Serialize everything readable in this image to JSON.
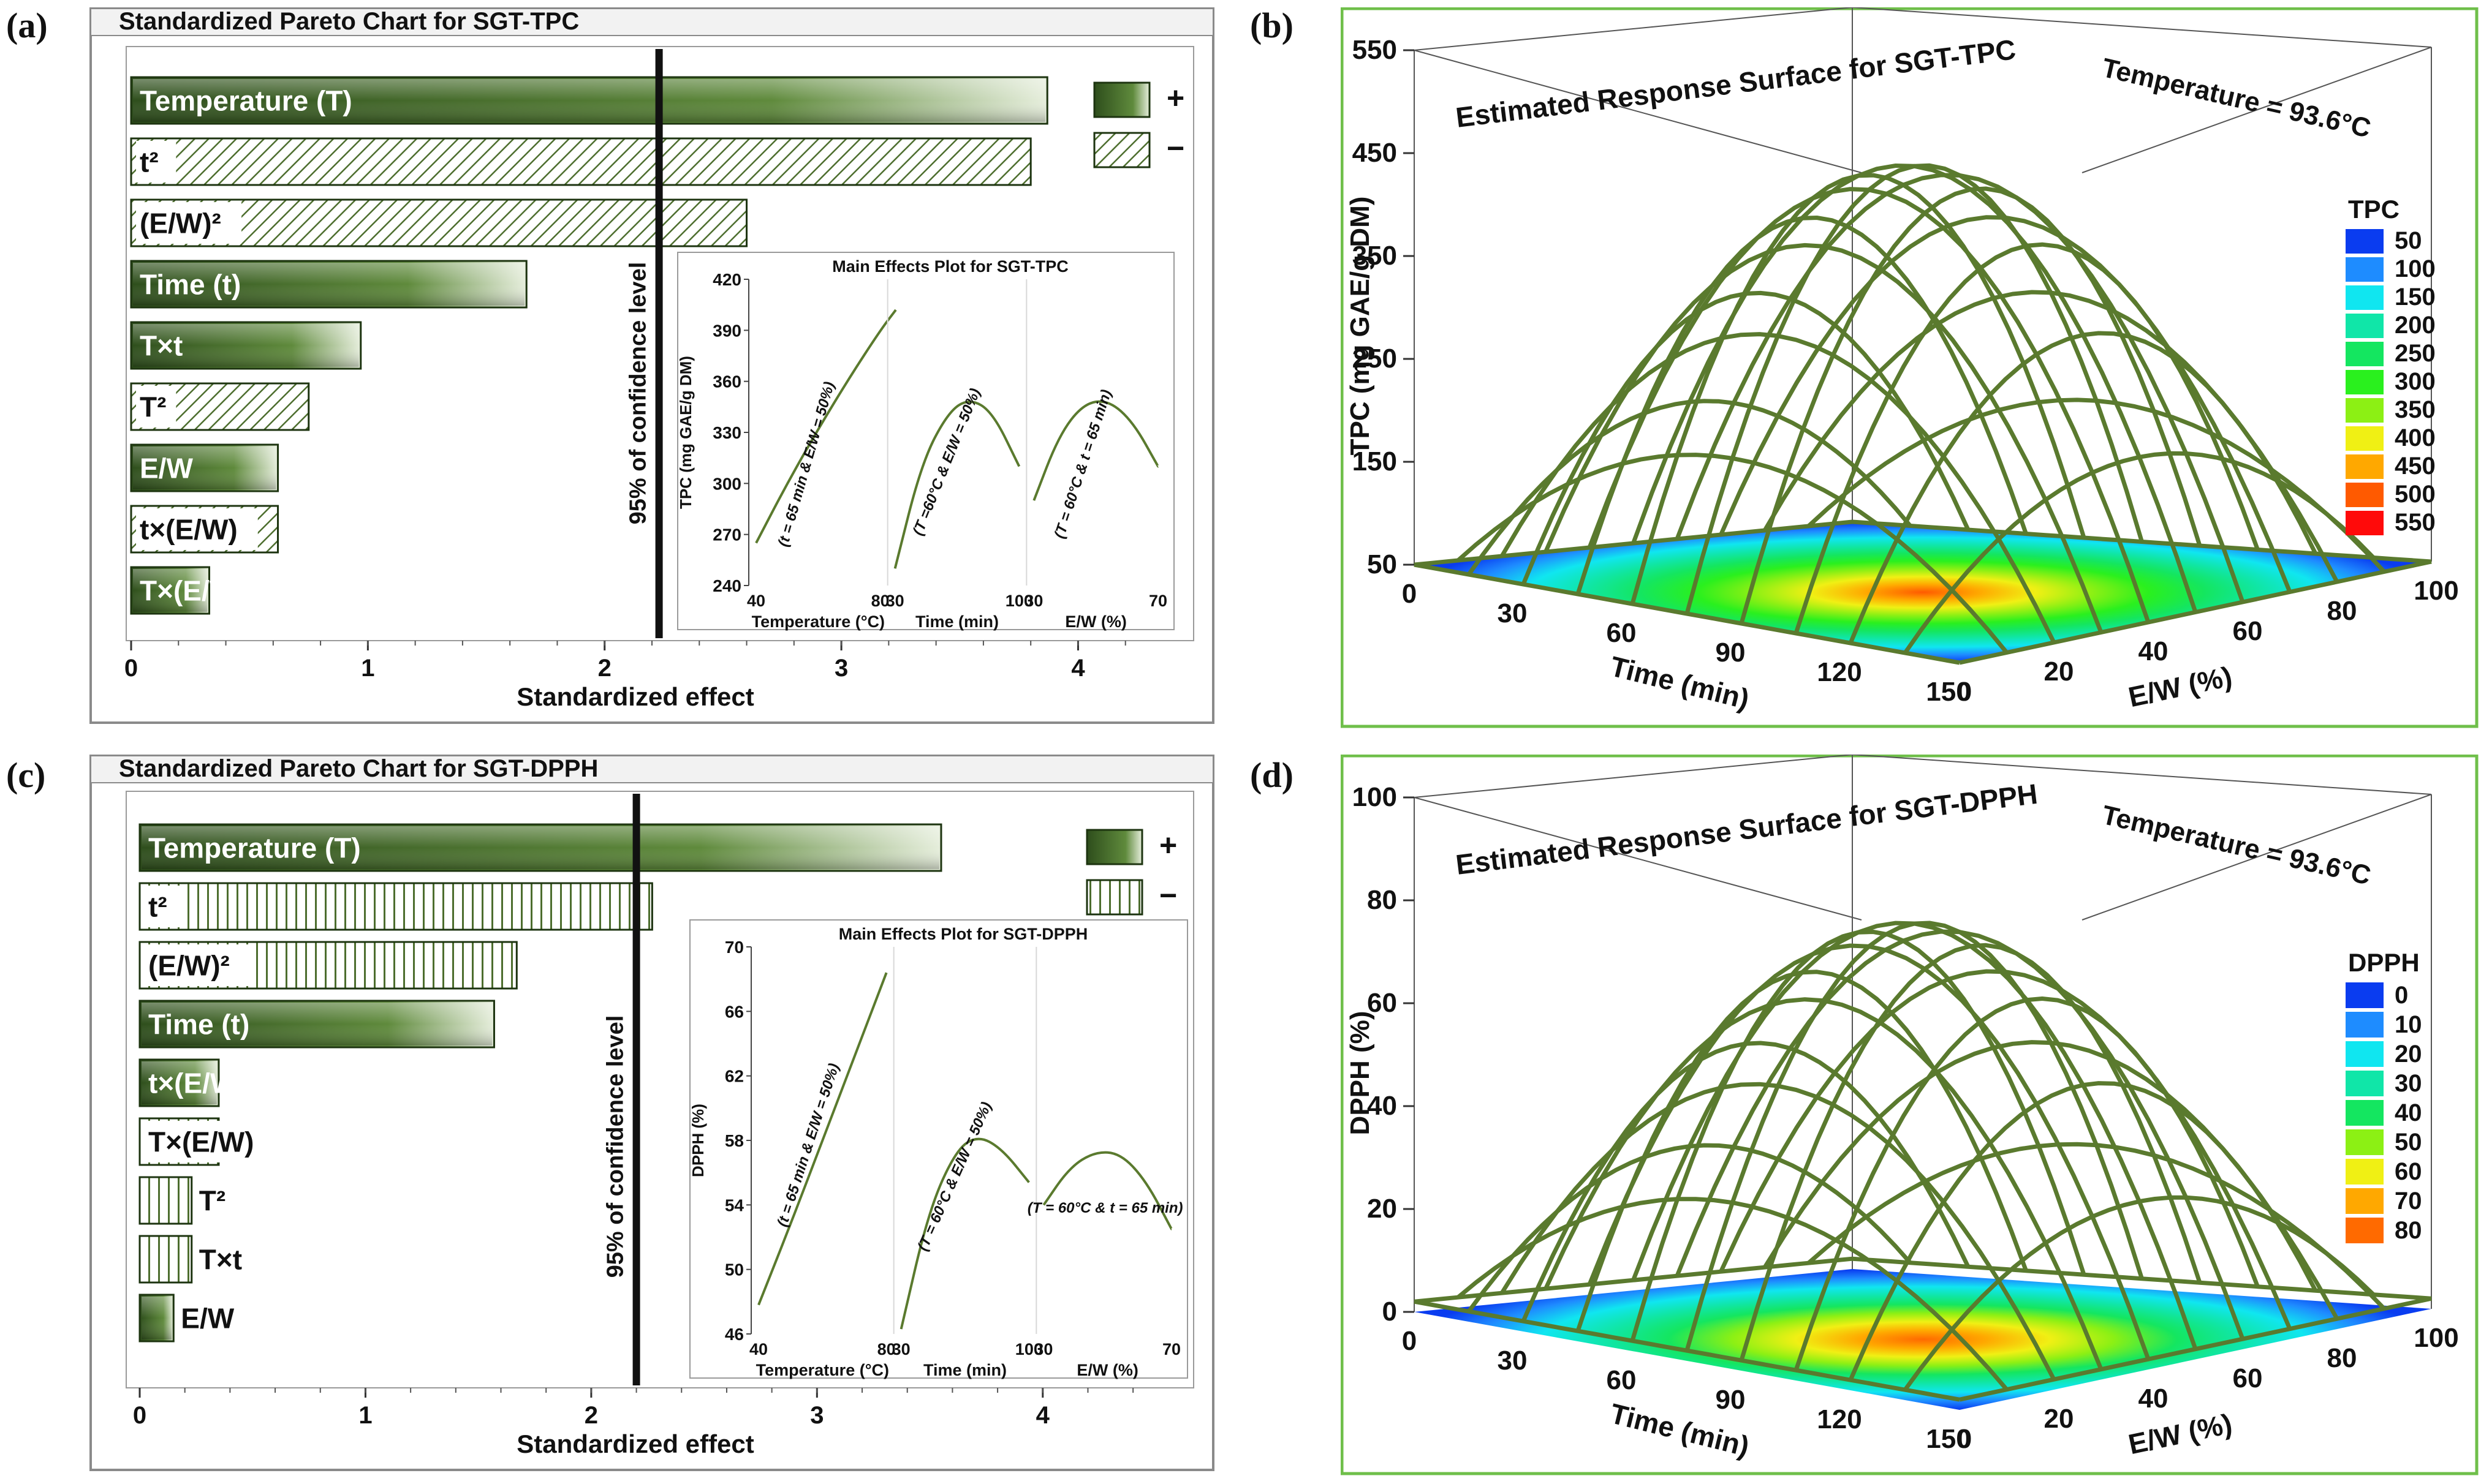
{
  "panel_labels": {
    "a": "(a)",
    "b": "(b)",
    "c": "(c)",
    "d": "(d)"
  },
  "colors": {
    "bar_dark": "#2e4e1c",
    "bar_mid": "#5f8a3c",
    "bar_light": "#e6eedc",
    "hatch": "#4d6e2e",
    "mesh": "#5a7a2e",
    "frame_green": "#6fbf4a"
  },
  "legend_signs": {
    "plus": "+",
    "minus": "−"
  },
  "chart_data": [
    {
      "id": "a",
      "type": "bar",
      "orientation": "horizontal",
      "title": "Standardized Pareto Chart for SGT-TPC",
      "xlabel": "Standardized effect",
      "xlim": [
        0,
        4.4
      ],
      "xticks": [
        "0",
        "1",
        "2",
        "3",
        "4"
      ],
      "threshold": 2.23,
      "threshold_label": "95% of confidence level",
      "legend": [
        "+",
        "−"
      ],
      "bars": [
        {
          "label": "Temperature (T)",
          "value": 3.87,
          "sign": "+"
        },
        {
          "label": "t²",
          "value": 3.8,
          "sign": "-"
        },
        {
          "label": "(E/W)²",
          "value": 2.6,
          "sign": "-"
        },
        {
          "label": "Time (t)",
          "value": 1.67,
          "sign": "+"
        },
        {
          "label": "T×t",
          "value": 0.97,
          "sign": "+"
        },
        {
          "label": "T²",
          "value": 0.75,
          "sign": "-"
        },
        {
          "label": "E/W",
          "value": 0.62,
          "sign": "+"
        },
        {
          "label": "t×(E/W)",
          "value": 0.62,
          "sign": "-"
        },
        {
          "label": "T×(E/W)",
          "value": 0.33,
          "sign": "+"
        }
      ],
      "inset": {
        "title": "Main Effects Plot for SGT-TPC",
        "ylabel": "TPC (mg GAE/g DM)",
        "ylim": [
          240,
          420
        ],
        "yticks": [
          "240",
          "270",
          "300",
          "330",
          "360",
          "390",
          "420"
        ],
        "panels": [
          {
            "xlabel": "Temperature (°C)",
            "x_ticks": [
              "40",
              "80"
            ],
            "x": [
              40,
              50,
              60,
              70,
              80,
              85
            ],
            "y": [
              265,
              300,
              332,
              362,
              390,
              402
            ],
            "note": "(t = 65 min & E/W = 50%)"
          },
          {
            "xlabel": "Time (min)",
            "x_ticks": [
              "30",
              "100"
            ],
            "x": [
              30,
              45,
              60,
              72,
              85,
              100
            ],
            "y": [
              250,
              312,
              342,
              350,
              342,
              310
            ],
            "note": "(T =60°C & E/W = 50%)"
          },
          {
            "xlabel": "E/W (%)",
            "x_ticks": [
              "30",
              "70"
            ],
            "x": [
              30,
              38,
              46,
              54,
              62,
              70
            ],
            "y": [
              290,
              328,
              347,
              349,
              336,
              310
            ],
            "note": "(T = 60°C & t = 65 min)"
          }
        ]
      }
    },
    {
      "id": "c",
      "type": "bar",
      "orientation": "horizontal",
      "title": "Standardized Pareto Chart for SGT-DPPH",
      "xlabel": "Standardized effect",
      "xlim": [
        0,
        4.5
      ],
      "xticks": [
        "0",
        "1",
        "2",
        "3",
        "4"
      ],
      "threshold": 2.2,
      "threshold_label": "95% of confidence level",
      "legend": [
        "+",
        "−"
      ],
      "bars": [
        {
          "label": "Temperature (T)",
          "value": 3.55,
          "sign": "+"
        },
        {
          "label": "t²",
          "value": 2.27,
          "sign": "-"
        },
        {
          "label": "(E/W)²",
          "value": 1.67,
          "sign": "-"
        },
        {
          "label": "Time (t)",
          "value": 1.57,
          "sign": "+"
        },
        {
          "label": "t×(E/W)",
          "value": 0.35,
          "sign": "+"
        },
        {
          "label": "T×(E/W)",
          "value": 0.35,
          "sign": "-"
        },
        {
          "label": "T²",
          "value": 0.23,
          "sign": "-"
        },
        {
          "label": "T×t",
          "value": 0.23,
          "sign": "-"
        },
        {
          "label": "E/W",
          "value": 0.15,
          "sign": "+"
        }
      ],
      "inset": {
        "title": "Main Effects Plot for SGT-DPPH",
        "ylabel": "DPPH (%)",
        "ylim": [
          46,
          70
        ],
        "yticks": [
          "46",
          "50",
          "54",
          "58",
          "62",
          "66",
          "70"
        ],
        "panels": [
          {
            "xlabel": "Temperature (°C)",
            "x_ticks": [
              "40",
              "80"
            ],
            "x": [
              40,
              50,
              60,
              70,
              80
            ],
            "y": [
              47.8,
              52.8,
              58.0,
              63.2,
              68.4
            ],
            "note": "(t = 65 min & E/W = 50%)"
          },
          {
            "xlabel": "Time (min)",
            "x_ticks": [
              "30",
              "100"
            ],
            "x": [
              30,
              45,
              60,
              72,
              85,
              100
            ],
            "y": [
              46.3,
              53.6,
              57.4,
              58.3,
              57.5,
              55.4
            ],
            "note": "(T = 60°C & E/W = 50%)"
          },
          {
            "xlabel": "E/W (%)",
            "x_ticks": [
              "30",
              "70"
            ],
            "x": [
              30,
              38,
              46,
              54,
              62,
              70
            ],
            "y": [
              54.0,
              56.3,
              57.3,
              57.2,
              55.5,
              52.5
            ],
            "note": "(T = 60°C & t = 65 min)"
          }
        ]
      }
    },
    {
      "id": "b",
      "type": "surface",
      "title": "Estimated Response Surface for SGT-TPC",
      "fixed_factor": "Temperature = 93.6°C",
      "zlabel": "TPC (mg GAE/g DM)",
      "xlabel": "Time (min)",
      "ylabel": "E/W (%)",
      "xticks": [
        "0",
        "30",
        "60",
        "90",
        "120",
        "150"
      ],
      "yticks": [
        "0",
        "20",
        "40",
        "60",
        "80",
        "100"
      ],
      "zticks": [
        "50",
        "150",
        "250",
        "350",
        "450",
        "550"
      ],
      "zlim": [
        50,
        550
      ],
      "z_peak": 450,
      "z_corner": 50,
      "legend_title": "TPC",
      "legend_levels": [
        "50",
        "100",
        "150",
        "200",
        "250",
        "300",
        "350",
        "400",
        "450",
        "500",
        "550"
      ],
      "legend_colors": [
        "#0a3cf0",
        "#1e8cff",
        "#10e6f0",
        "#10e6a8",
        "#14e660",
        "#2af01e",
        "#8cf014",
        "#f0f014",
        "#ffa800",
        "#ff5a00",
        "#ff0a0a"
      ]
    },
    {
      "id": "d",
      "type": "surface",
      "title": "Estimated Response Surface for SGT-DPPH",
      "fixed_factor": "Temperature = 93.6°C",
      "zlabel": "DPPH (%)",
      "xlabel": "Time (min)",
      "ylabel": "E/W (%)",
      "xticks": [
        "0",
        "30",
        "60",
        "90",
        "120",
        "150"
      ],
      "yticks": [
        "0",
        "20",
        "40",
        "60",
        "80",
        "100"
      ],
      "zticks": [
        "0",
        "20",
        "40",
        "60",
        "80",
        "100"
      ],
      "zlim": [
        0,
        100
      ],
      "z_peak": 78,
      "z_corner": 2,
      "legend_title": "DPPH",
      "legend_levels": [
        "0",
        "10",
        "20",
        "30",
        "40",
        "50",
        "60",
        "70",
        "80"
      ],
      "legend_colors": [
        "#0a3cf0",
        "#1e8cff",
        "#10e6f0",
        "#10e6a8",
        "#14e660",
        "#8cf014",
        "#f0f014",
        "#ffa800",
        "#ff6a00"
      ]
    }
  ]
}
